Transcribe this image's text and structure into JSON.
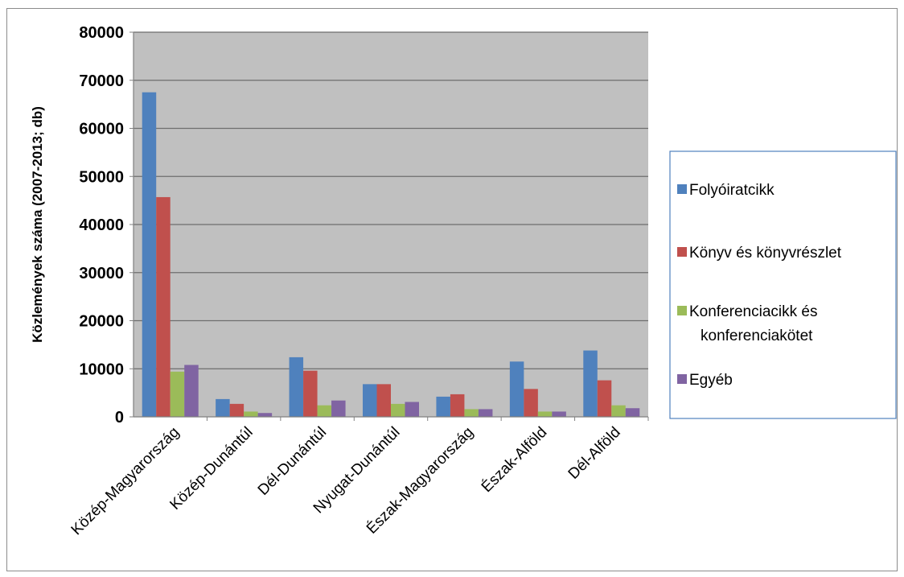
{
  "chart_data": {
    "type": "bar",
    "ylabel": "Közlemények száma (2007-2013; db)",
    "ylim": [
      0,
      80000
    ],
    "yticks": [
      "0",
      "10000",
      "20000",
      "30000",
      "40000",
      "50000",
      "60000",
      "70000",
      "80000"
    ],
    "grid": true,
    "legend_position": "right",
    "categories": [
      "Közép-Magyarország",
      "Közép-Dunántúl",
      "Dél-Dunántúl",
      "Nyugat-Dunántúl",
      "Észak-Magyarország",
      "Észak-Alföld",
      "Dél-Alföld"
    ],
    "series": [
      {
        "name": "Folyóiratcikk",
        "color": "#4f81bd",
        "values": [
          67500,
          3700,
          12400,
          6800,
          4200,
          11500,
          13800
        ]
      },
      {
        "name": "Könyv és könyvrészlet",
        "color": "#c0504d",
        "values": [
          45700,
          2700,
          9600,
          6800,
          4700,
          5800,
          7600
        ]
      },
      {
        "name": "Konferenciacikk és konferenciakötet",
        "color": "#9bbb59",
        "values": [
          9400,
          1100,
          2400,
          2700,
          1600,
          1100,
          2400
        ]
      },
      {
        "name": "Egyéb",
        "color": "#8064a2",
        "values": [
          10800,
          800,
          3400,
          3100,
          1600,
          1100,
          1800
        ]
      }
    ],
    "plot_background": "#c0c0c0"
  }
}
